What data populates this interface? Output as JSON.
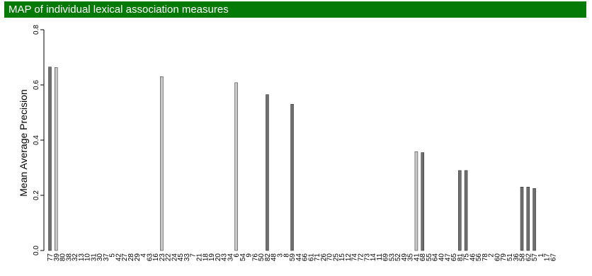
{
  "title": "MAP of individual lexical association measures",
  "colors": {
    "title_bg": "#067a06",
    "title_fg": "#ffffff",
    "bar_dark": "#6f6f6f",
    "bar_light": "#c8c8c8",
    "bar_stroke": "#222222"
  },
  "chart_data": {
    "type": "bar",
    "title": "MAP of individual lexical association measures",
    "ylabel": "Mean Average Precision",
    "xlabel": "",
    "ylim": [
      0.0,
      0.8
    ],
    "yticks": [
      0.0,
      0.2,
      0.4,
      0.6,
      0.8
    ],
    "ytick_labels": [
      "0.0",
      "0.2",
      "0.4",
      "0.6",
      "0.8"
    ],
    "grid": false,
    "categories": [
      "77",
      "39",
      "80",
      "38",
      "32",
      "13",
      "10",
      "31",
      "30",
      "37",
      "5",
      "42",
      "27",
      "28",
      "29",
      "4",
      "63",
      "16",
      "23",
      "22",
      "24",
      "45",
      "33",
      "7",
      "21",
      "18",
      "19",
      "20",
      "43",
      "34",
      "6",
      "54",
      "9",
      "76",
      "50",
      "82",
      "48",
      "3",
      "8",
      "59",
      "44",
      "66",
      "61",
      "71",
      "26",
      "70",
      "25",
      "15",
      "12",
      "74",
      "72",
      "73",
      "14",
      "11",
      "69",
      "53",
      "52",
      "49",
      "35",
      "41",
      "68",
      "55",
      "64",
      "40",
      "47",
      "65",
      "81",
      "75",
      "46",
      "56",
      "78",
      "2",
      "60",
      "79",
      "51",
      "36",
      "58",
      "62",
      "57",
      "1",
      "17",
      "67"
    ],
    "values": [
      0.665,
      0.663,
      0,
      0,
      0,
      0,
      0,
      0,
      0,
      0,
      0,
      0,
      0,
      0,
      0,
      0,
      0,
      0,
      0.63,
      0,
      0,
      0,
      0,
      0,
      0,
      0,
      0,
      0,
      0,
      0,
      0.608,
      0,
      0,
      0,
      0,
      0.565,
      0,
      0,
      0,
      0.53,
      0,
      0,
      0,
      0,
      0,
      0,
      0,
      0,
      0,
      0,
      0,
      0,
      0,
      0,
      0,
      0,
      0,
      0,
      0,
      0.358,
      0.355,
      0,
      0,
      0,
      0,
      0,
      0.29,
      0.29,
      0,
      0,
      0,
      0,
      0,
      0,
      0,
      0,
      0.23,
      0.23,
      0.225,
      0,
      0,
      0
    ],
    "bar_shades": [
      "dark",
      "light",
      "",
      "",
      "",
      "",
      "",
      "",
      "",
      "",
      "",
      "",
      "",
      "",
      "",
      "",
      "",
      "",
      "light",
      "",
      "",
      "",
      "",
      "",
      "",
      "",
      "",
      "",
      "",
      "",
      "light",
      "",
      "",
      "",
      "",
      "dark",
      "",
      "",
      "",
      "dark",
      "",
      "",
      "",
      "",
      "",
      "",
      "",
      "",
      "",
      "",
      "",
      "",
      "",
      "",
      "",
      "",
      "",
      "",
      "",
      "light",
      "dark",
      "",
      "",
      "",
      "",
      "",
      "dark",
      "dark",
      "",
      "",
      "",
      "",
      "",
      "",
      "",
      "",
      "dark",
      "dark",
      "dark",
      "",
      "",
      ""
    ]
  }
}
